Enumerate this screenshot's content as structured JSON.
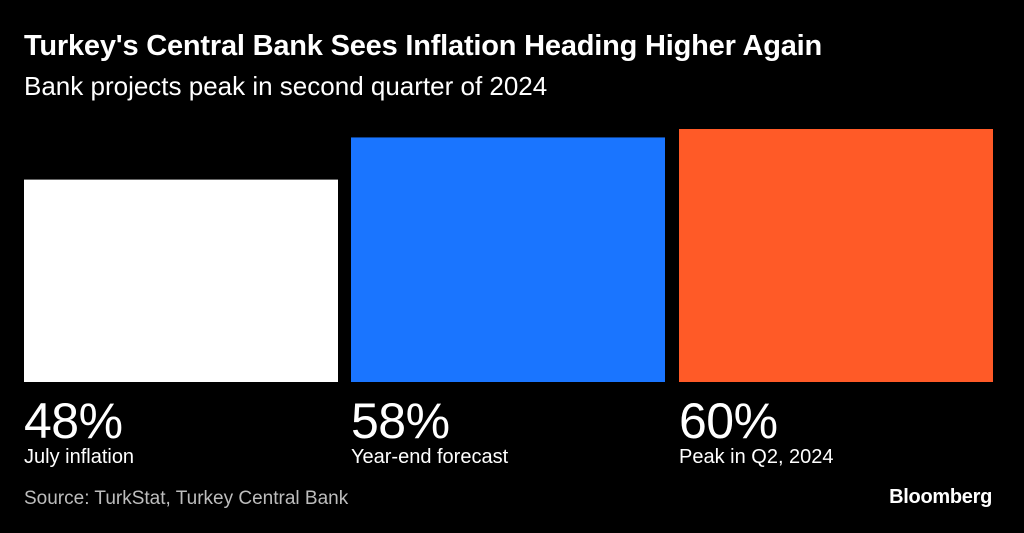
{
  "title": "Turkey's Central Bank Sees Inflation Heading Higher Again",
  "subtitle": "Bank projects peak in second quarter of 2024",
  "source": "Source: TurkStat, Turkey Central Bank",
  "logo": "Bloomberg",
  "chart_data": {
    "type": "bar",
    "title": "Turkey's Central Bank Sees Inflation Heading Higher Again",
    "subtitle": "Bank projects peak in second quarter of 2024",
    "categories": [
      "July inflation",
      "Year-end forecast",
      "Peak in Q2, 2024"
    ],
    "values": [
      48,
      58,
      60
    ],
    "value_labels": [
      "48%",
      "58%",
      "60%"
    ],
    "colors": [
      "#ffffff",
      "#1a75ff",
      "#ff5a27"
    ],
    "unit": "%",
    "xlabel": "",
    "ylabel": "",
    "grid": false
  }
}
